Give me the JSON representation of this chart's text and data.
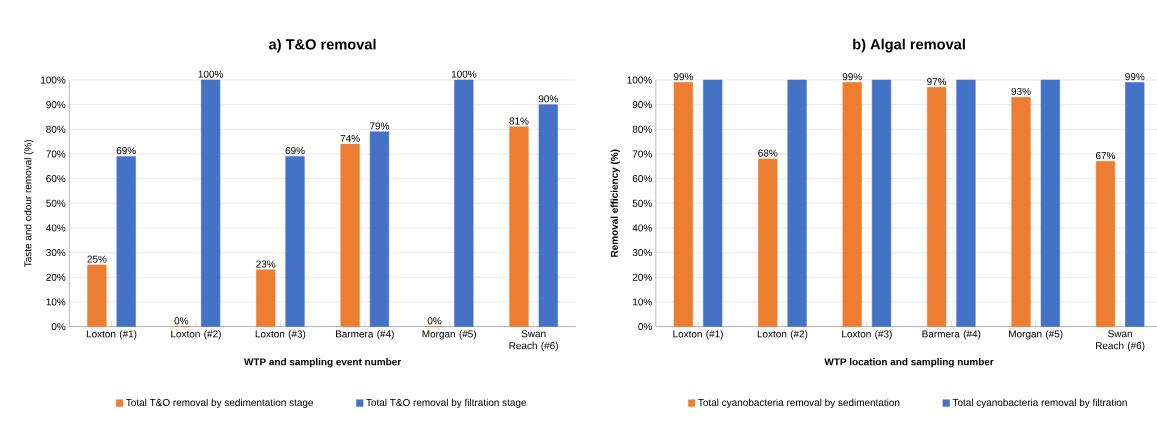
{
  "chart_data": [
    {
      "type": "bar",
      "title": "a) T&O removal",
      "xlabel": "WTP and sampling event number",
      "ylabel": "Taste and odour removal (%)",
      "categories": [
        "Loxton (#1)",
        "Loxton (#2)",
        "Loxton (#3)",
        "Barmera (#4)",
        "Morgan (#5)",
        "Swan Reach (#6)"
      ],
      "series": [
        {
          "name": "Total T&O removal by sedimentation stage",
          "color": "#ed7d31",
          "values": [
            25,
            0,
            23,
            74,
            0,
            81
          ],
          "value_labels": [
            "25%",
            "0%",
            "23%",
            "74%",
            "0%",
            "81%"
          ]
        },
        {
          "name": "Total T&O removal by filtration stage",
          "color": "#4472c4",
          "values": [
            69,
            100,
            69,
            79,
            100,
            90
          ],
          "value_labels": [
            "69%",
            "100%",
            "69%",
            "79%",
            "100%",
            "90%"
          ]
        }
      ],
      "ylim": [
        0,
        100
      ],
      "yticks": [
        {
          "value": 0,
          "label": "0%"
        },
        {
          "value": 10,
          "label": "10%"
        },
        {
          "value": 20,
          "label": "20%"
        },
        {
          "value": 30,
          "label": "30%"
        },
        {
          "value": 40,
          "label": "40%"
        },
        {
          "value": 50,
          "label": "50%"
        },
        {
          "value": 60,
          "label": "60%"
        },
        {
          "value": 70,
          "label": "70%"
        },
        {
          "value": 80,
          "label": "80%"
        },
        {
          "value": 90,
          "label": "90%"
        },
        {
          "value": 100,
          "label": "100%"
        }
      ],
      "grid": "y",
      "legend": "bottom"
    },
    {
      "type": "bar",
      "title": "b) Algal removal",
      "xlabel": "WTP location and sampling number",
      "ylabel": "Removal efficiency (%)",
      "categories": [
        "Loxton (#1)",
        "Loxton (#2)",
        "Loxton (#3)",
        "Barmera (#4)",
        "Morgan (#5)",
        "Swan Reach (#6)"
      ],
      "series": [
        {
          "name": "Total cyanobacteria removal by sedimentation",
          "color": "#ed7d31",
          "values": [
            99,
            68,
            99,
            97,
            93,
            67
          ],
          "value_labels": [
            "99%",
            "68%",
            "99%",
            "97%",
            "93%",
            "67%"
          ]
        },
        {
          "name": "Total cyanobacteria removal by filtration",
          "color": "#4472c4",
          "values": [
            100,
            100,
            100,
            100,
            100,
            99
          ],
          "value_labels": [
            null,
            null,
            null,
            null,
            null,
            "99%"
          ]
        }
      ],
      "ylim": [
        0,
        100
      ],
      "yticks": [
        {
          "value": 0,
          "label": "0%"
        },
        {
          "value": 10,
          "label": "10%"
        },
        {
          "value": 20,
          "label": "20%"
        },
        {
          "value": 30,
          "label": "30%"
        },
        {
          "value": 40,
          "label": "40%"
        },
        {
          "value": 50,
          "label": "50%"
        },
        {
          "value": 60,
          "label": "60%"
        },
        {
          "value": 70,
          "label": "70%"
        },
        {
          "value": 80,
          "label": "80%"
        },
        {
          "value": 90,
          "label": "90%"
        },
        {
          "value": 100,
          "label": "100%"
        }
      ],
      "grid": "y",
      "legend": "bottom"
    }
  ]
}
